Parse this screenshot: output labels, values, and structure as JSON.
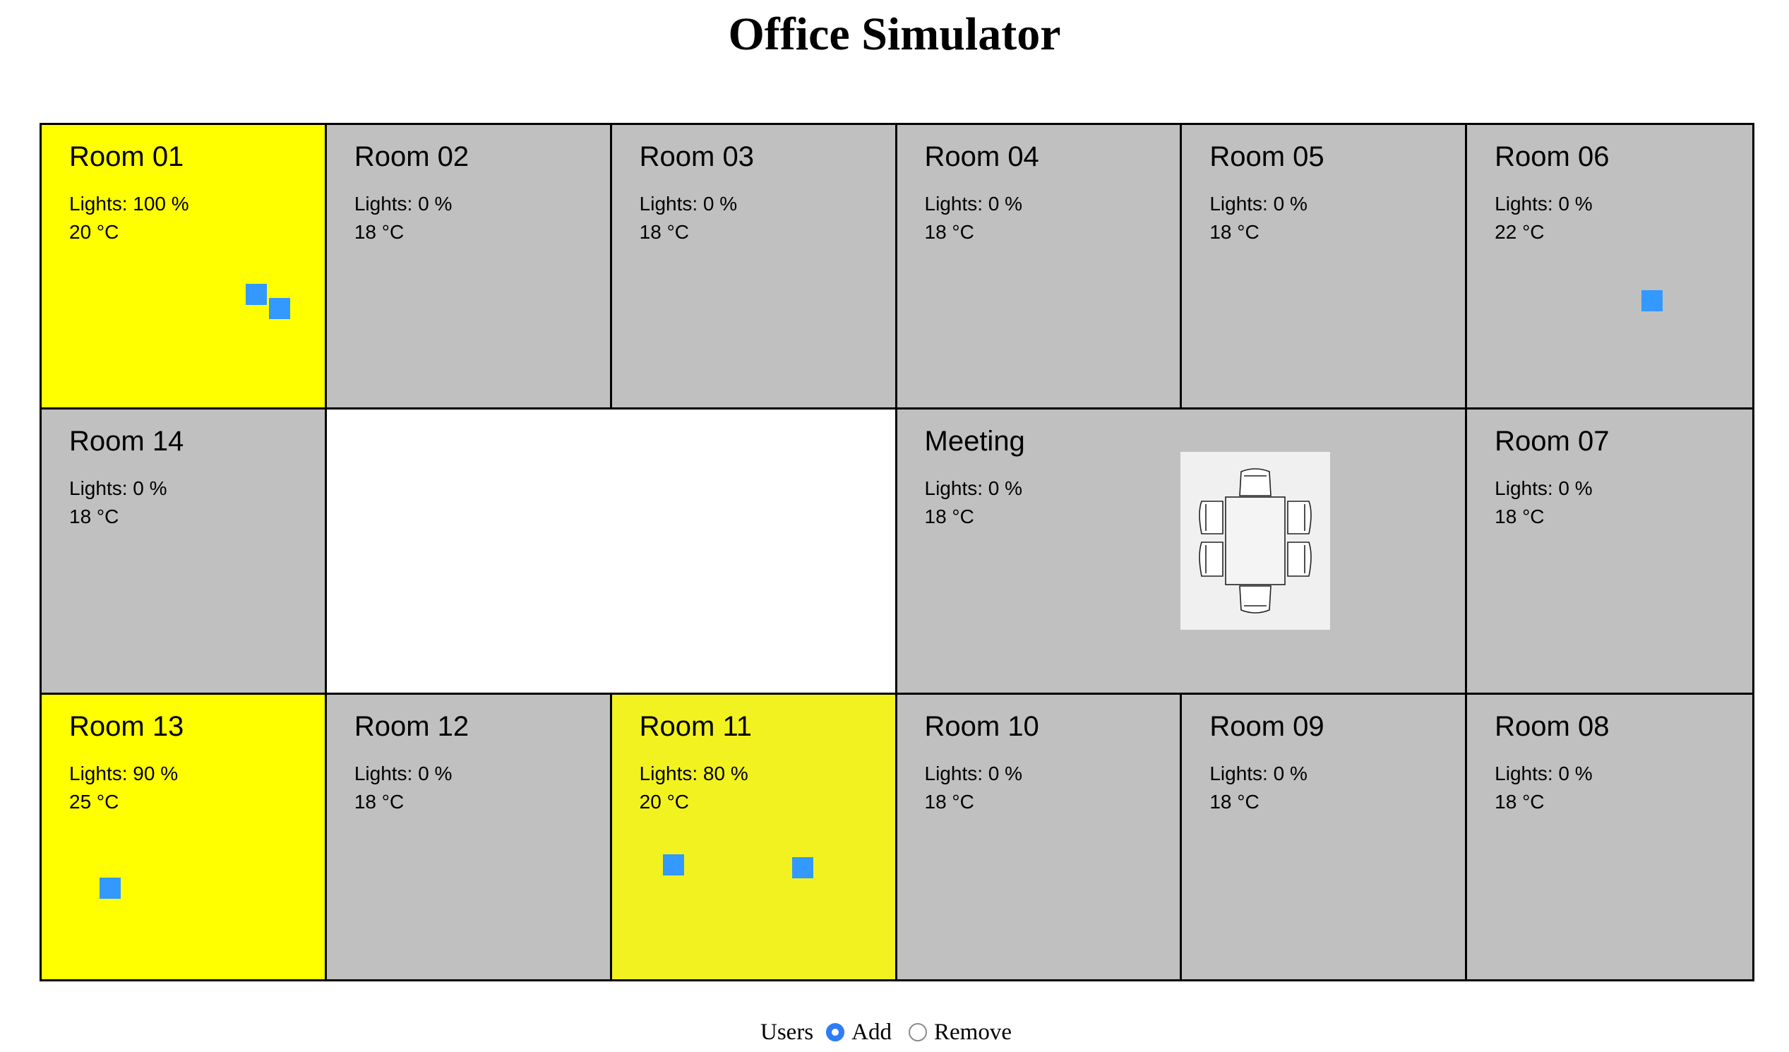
{
  "page": {
    "title": "Office Simulator"
  },
  "colors": {
    "lit_full": "#ffff00",
    "lit_partial": "#f2f220",
    "off": "#c0c0c0",
    "user": "#3399ff",
    "radio_active": "#2d7df5"
  },
  "rooms": {
    "r01": {
      "name": "Room 01",
      "lights": "Lights: 100 %",
      "temp": "20 °C",
      "users": 2
    },
    "r02": {
      "name": "Room 02",
      "lights": "Lights: 0 %",
      "temp": "18 °C",
      "users": 0
    },
    "r03": {
      "name": "Room 03",
      "lights": "Lights: 0 %",
      "temp": "18 °C",
      "users": 0
    },
    "r04": {
      "name": "Room 04",
      "lights": "Lights: 0 %",
      "temp": "18 °C",
      "users": 0
    },
    "r05": {
      "name": "Room 05",
      "lights": "Lights: 0 %",
      "temp": "18 °C",
      "users": 0
    },
    "r06": {
      "name": "Room 06",
      "lights": "Lights: 0 %",
      "temp": "22 °C",
      "users": 1
    },
    "r14": {
      "name": "Room 14",
      "lights": "Lights: 0 %",
      "temp": "18 °C",
      "users": 0
    },
    "meeting": {
      "name": "Meeting",
      "lights": "Lights: 0 %",
      "temp": "18 °C",
      "users": 0
    },
    "r07": {
      "name": "Room 07",
      "lights": "Lights: 0 %",
      "temp": "18 °C",
      "users": 0
    },
    "r13": {
      "name": "Room 13",
      "lights": "Lights: 90 %",
      "temp": "25 °C",
      "users": 1
    },
    "r12": {
      "name": "Room 12",
      "lights": "Lights: 0 %",
      "temp": "18 °C",
      "users": 0
    },
    "r11": {
      "name": "Room 11",
      "lights": "Lights: 80 %",
      "temp": "20 °C",
      "users": 2
    },
    "r10": {
      "name": "Room 10",
      "lights": "Lights: 0 %",
      "temp": "18 °C",
      "users": 0
    },
    "r09": {
      "name": "Room 09",
      "lights": "Lights: 0 %",
      "temp": "18 °C",
      "users": 0
    },
    "r08": {
      "name": "Room 08",
      "lights": "Lights: 0 %",
      "temp": "18 °C",
      "users": 0
    }
  },
  "meeting_icon": "meeting-table-icon",
  "controls": {
    "label": "Users",
    "options": [
      {
        "label": "Add",
        "selected": true
      },
      {
        "label": "Remove",
        "selected": false
      }
    ]
  }
}
